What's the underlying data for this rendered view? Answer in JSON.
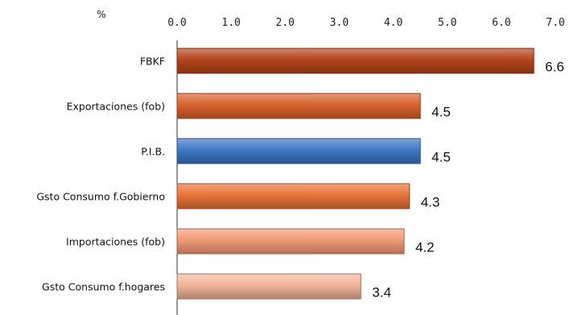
{
  "chart_data": {
    "type": "bar",
    "orientation": "horizontal",
    "axis_unit": "%",
    "xlim": [
      0,
      7
    ],
    "ticks": [
      "0.0",
      "1.0",
      "2.0",
      "3.0",
      "4.0",
      "5.0",
      "6.0",
      "7.0"
    ],
    "axis_position": "top",
    "grid": false,
    "categories": [
      "FBKF",
      "Exportaciones (fob)",
      "P.I.B.",
      "Gsto Consumo f.Gobierno",
      "Importaciones (fob)",
      "Gsto Consumo f.hogares"
    ],
    "values": [
      6.6,
      4.5,
      4.5,
      4.3,
      4.2,
      3.4
    ],
    "value_labels": [
      "6.6",
      "4.5",
      "4.5",
      "4.3",
      "4.2",
      "3.4"
    ],
    "bar_colors": [
      "#b5451b",
      "#d9622b",
      "#3f78c6",
      "#e8733a",
      "#f19a78",
      "#f2b49a"
    ]
  }
}
